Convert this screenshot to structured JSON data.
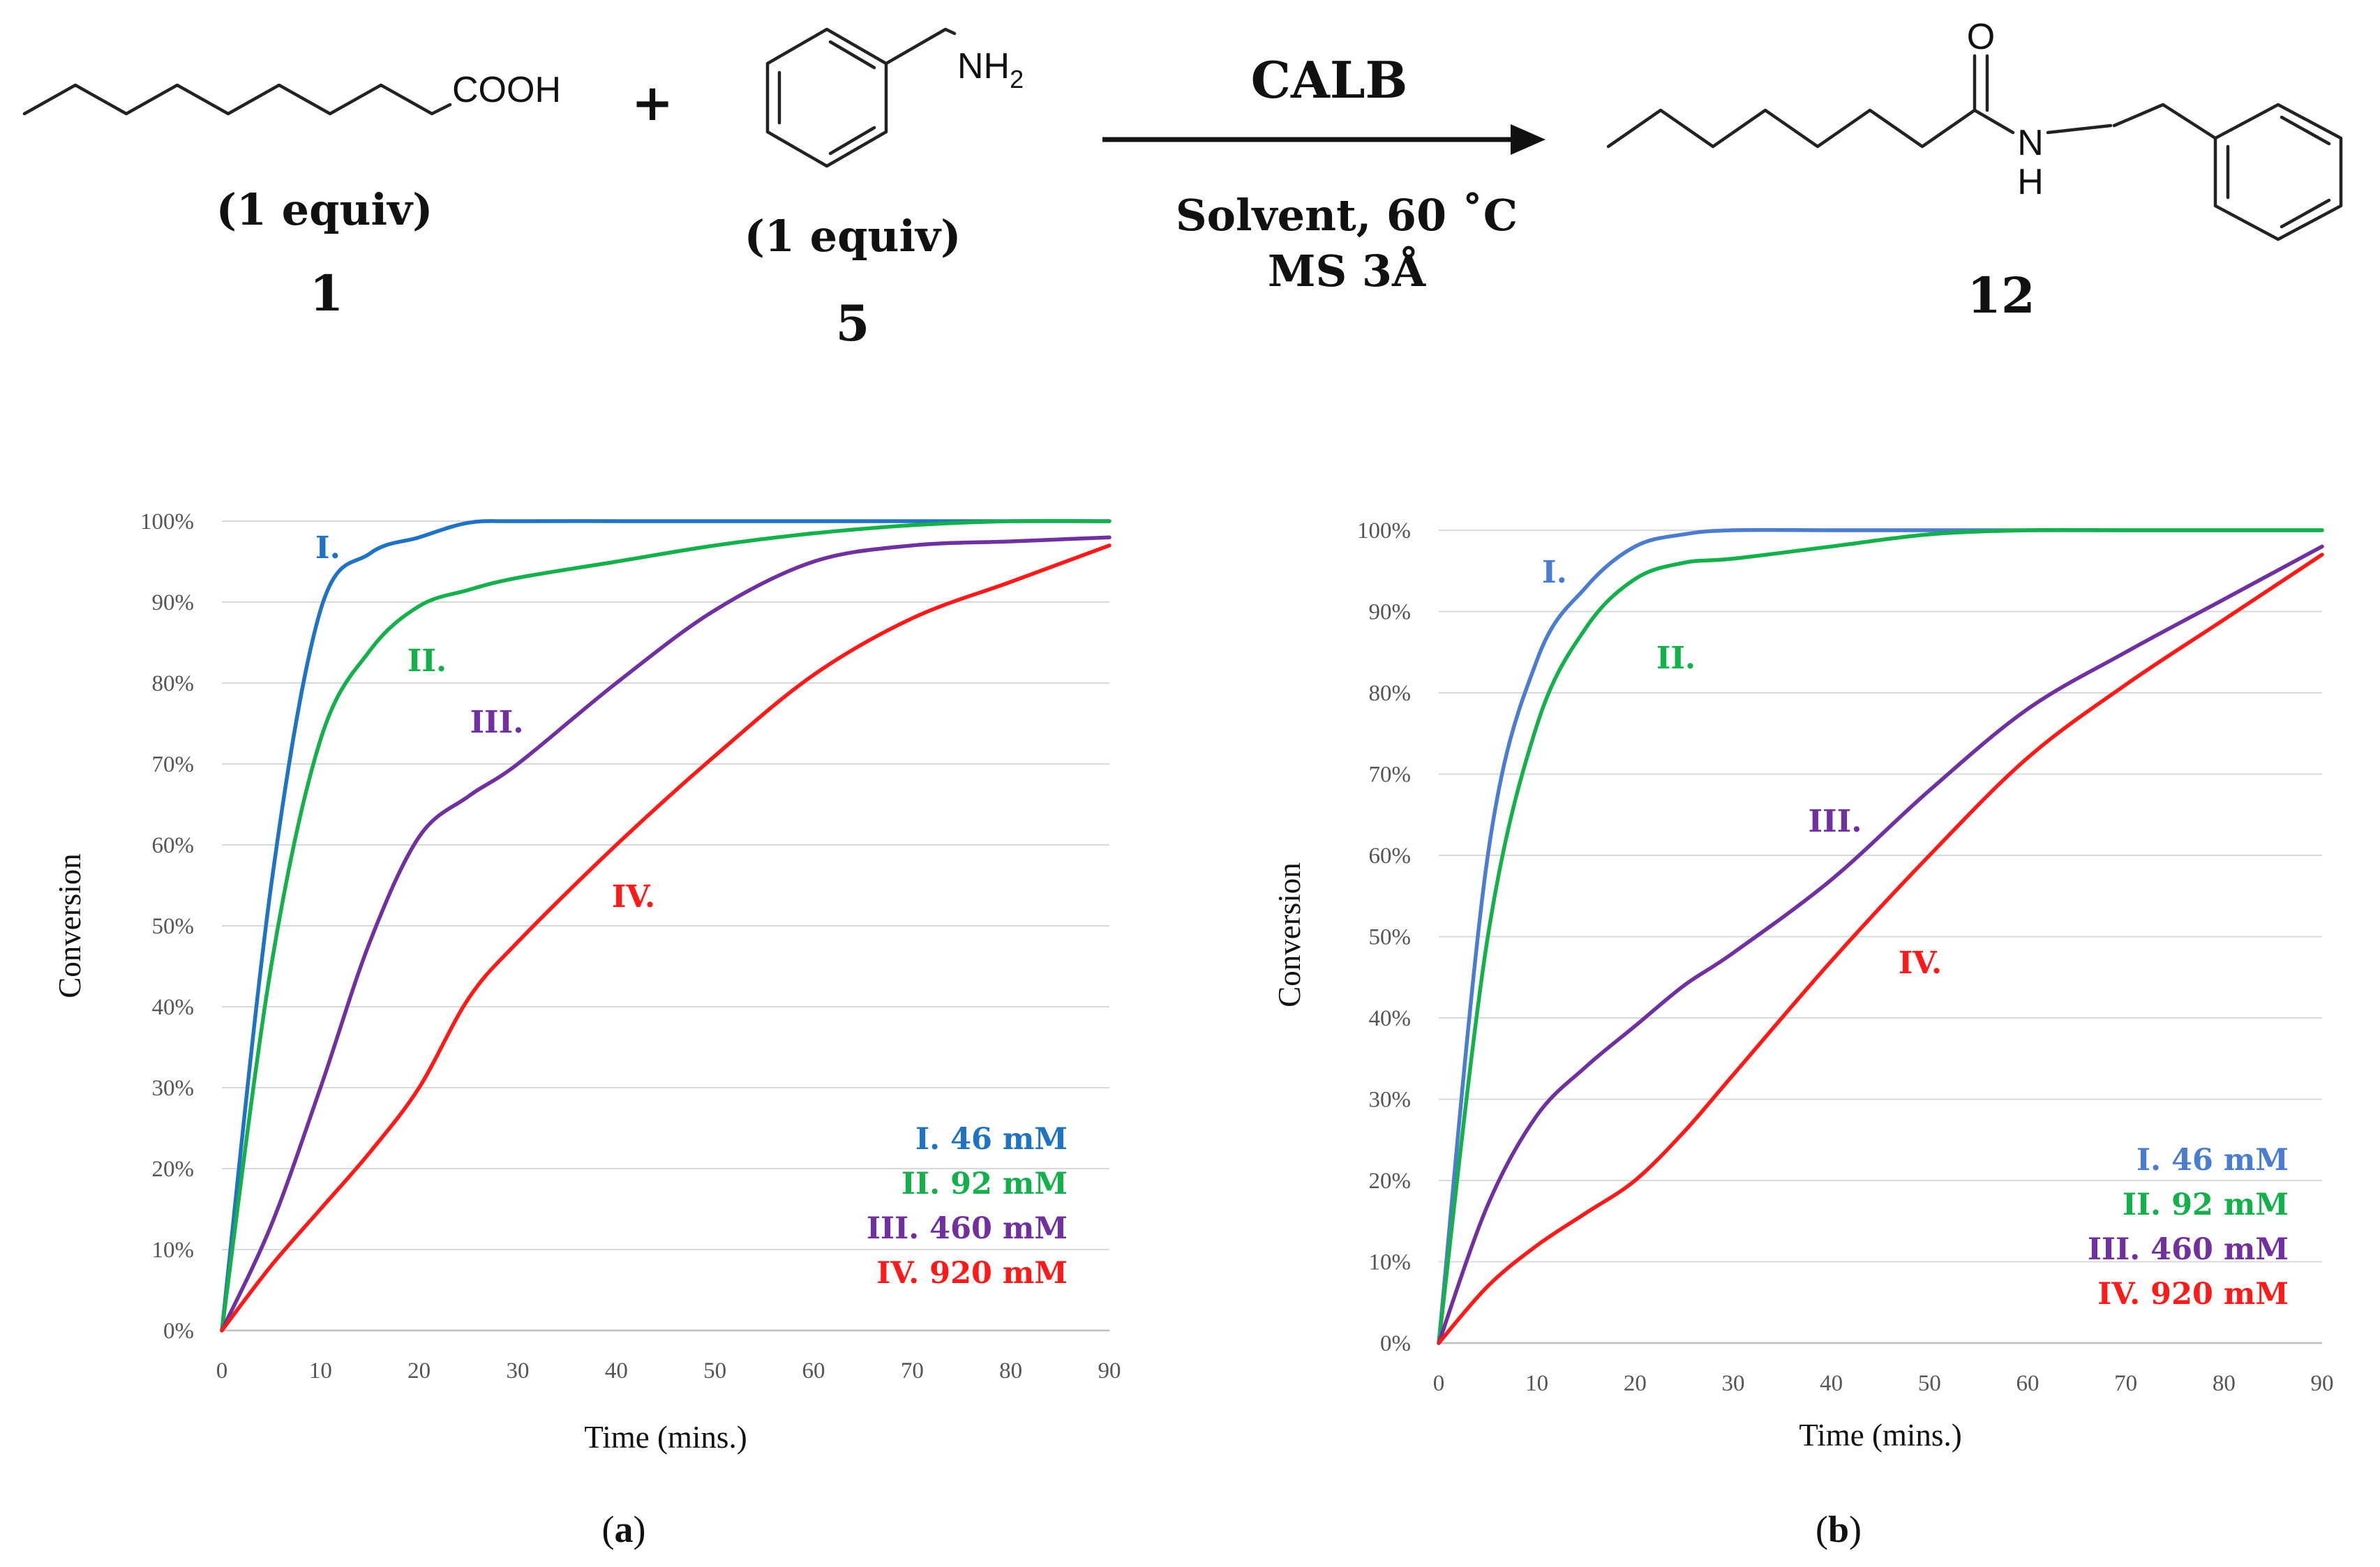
{
  "scheme": {
    "reactant1": {
      "group": "COOH",
      "equiv": "(1 equiv)",
      "number": "1"
    },
    "plus": "+",
    "reactant2": {
      "group": "NH2",
      "equiv": "(1 equiv)",
      "number": "5"
    },
    "catalyst": "CALB",
    "conditions_line1": "Solvent, 60 ˚C",
    "conditions_line2": "MS 3Å",
    "product": {
      "carbonyl_o": "O",
      "n": "N",
      "h": "H",
      "number": "12"
    }
  },
  "colors": {
    "I": "#1f73c4",
    "II": "#13b04b",
    "III": "#7030a0",
    "IV": "#ff1a1a",
    "grid": "#d9d9d9"
  },
  "chart_data": [
    {
      "panel": "(a)",
      "type": "line",
      "xlabel": "Time (mins.)",
      "ylabel": "Conversion",
      "xlim": [
        0,
        90
      ],
      "ylim": [
        0,
        100
      ],
      "xticks": [
        "0",
        "10",
        "20",
        "30",
        "40",
        "50",
        "60",
        "70",
        "80",
        "90"
      ],
      "yticks": [
        "0%",
        "10%",
        "20%",
        "30%",
        "40%",
        "50%",
        "60%",
        "70%",
        "80%",
        "90%",
        "100%"
      ],
      "series": [
        {
          "key": "I",
          "name": "I.",
          "legend": "I. 46 mM",
          "color": "#1f73c4",
          "x": [
            0,
            5,
            10,
            15,
            20,
            25,
            30,
            40,
            50,
            60,
            70,
            80,
            90
          ],
          "y": [
            0,
            55,
            89,
            96,
            98,
            99.8,
            100,
            100,
            100,
            100,
            100,
            100,
            100
          ]
        },
        {
          "key": "II",
          "name": "II.",
          "legend": "II. 92 mM",
          "color": "#13b04b",
          "x": [
            0,
            5,
            10,
            15,
            20,
            25,
            30,
            40,
            50,
            60,
            70,
            80,
            90
          ],
          "y": [
            0,
            45,
            73,
            84,
            89.5,
            91.5,
            93,
            95,
            97,
            98.5,
            99.5,
            100,
            100
          ]
        },
        {
          "key": "III",
          "name": "III.",
          "legend": "III. 460 mM",
          "color": "#7030a0",
          "x": [
            0,
            5,
            10,
            15,
            20,
            25,
            30,
            40,
            50,
            60,
            70,
            80,
            90
          ],
          "y": [
            0,
            13,
            30,
            48,
            61,
            66,
            70,
            80,
            89,
            95,
            97,
            97.5,
            98
          ]
        },
        {
          "key": "IV",
          "name": "IV.",
          "legend": "IV. 920 mM",
          "color": "#ff1a1a",
          "x": [
            0,
            5,
            10,
            15,
            20,
            25,
            30,
            40,
            50,
            60,
            70,
            80,
            90
          ],
          "y": [
            0,
            8,
            15,
            22,
            30,
            41,
            48,
            60,
            71,
            81,
            88,
            92.5,
            97
          ]
        }
      ]
    },
    {
      "panel": "(b)",
      "type": "line",
      "xlabel": "Time (mins.)",
      "ylabel": "Conversion",
      "xlim": [
        0,
        90
      ],
      "ylim": [
        0,
        100
      ],
      "xticks": [
        "0",
        "10",
        "20",
        "30",
        "40",
        "50",
        "60",
        "70",
        "80",
        "90"
      ],
      "yticks": [
        "0%",
        "10%",
        "20%",
        "30%",
        "40%",
        "50%",
        "60%",
        "70%",
        "80%",
        "90%",
        "100%"
      ],
      "series": [
        {
          "key": "I",
          "name": "I.",
          "legend": "I. 46 mM",
          "color": "#4a7ccf",
          "x": [
            0,
            5,
            10,
            15,
            20,
            25,
            30,
            40,
            50,
            60,
            70,
            80,
            90
          ],
          "y": [
            0,
            60,
            84,
            93,
            98,
            99.5,
            100,
            100,
            100,
            100,
            100,
            100,
            100
          ]
        },
        {
          "key": "II",
          "name": "II.",
          "legend": "II. 92 mM",
          "color": "#13b04b",
          "x": [
            0,
            5,
            10,
            15,
            20,
            25,
            30,
            40,
            50,
            60,
            70,
            80,
            90
          ],
          "y": [
            0,
            50,
            76,
            88,
            94,
            96,
            96.5,
            98,
            99.5,
            100,
            100,
            100,
            100
          ]
        },
        {
          "key": "III",
          "name": "III.",
          "legend": "III. 460 mM",
          "color": "#7030a0",
          "x": [
            0,
            5,
            10,
            15,
            20,
            25,
            30,
            40,
            50,
            60,
            70,
            80,
            90
          ],
          "y": [
            0,
            17,
            28,
            34,
            39,
            44,
            48,
            57,
            68,
            78,
            85,
            91.5,
            98
          ]
        },
        {
          "key": "IV",
          "name": "IV.",
          "legend": "IV. 920 mM",
          "color": "#ff1a1a",
          "x": [
            0,
            5,
            10,
            15,
            20,
            25,
            30,
            40,
            50,
            60,
            70,
            80,
            90
          ],
          "y": [
            0,
            7,
            12,
            16,
            20,
            26,
            33,
            47,
            60,
            72,
            81,
            89,
            97
          ]
        }
      ]
    }
  ]
}
